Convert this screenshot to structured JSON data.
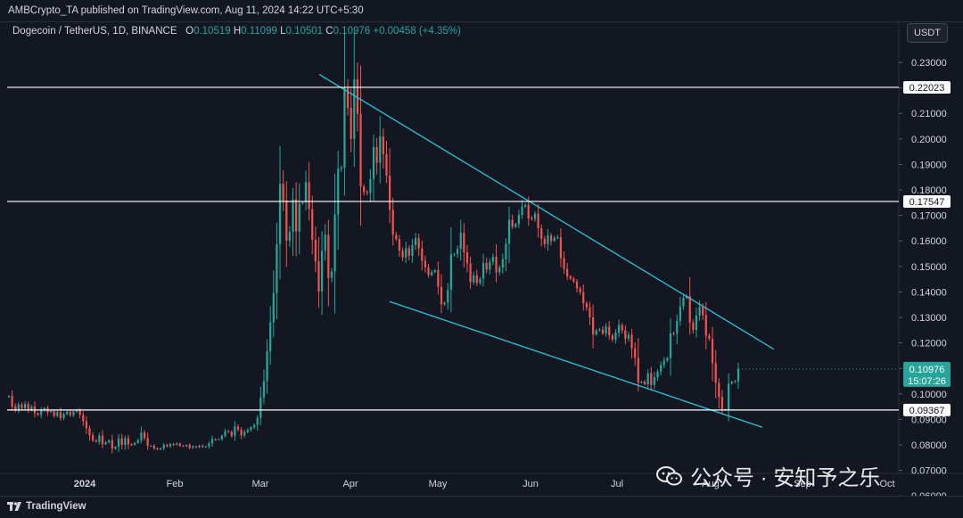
{
  "header": {
    "publisher": "AMBCrypto_TA published on TradingView.com, Aug 11, 2024 14:22 UTC+5:30",
    "symbol": "Dogecoin / TetherUS, 1D, BINANCE",
    "ohlc": [
      {
        "label": "O",
        "value": "0.10519"
      },
      {
        "label": "H",
        "value": "0.11099"
      },
      {
        "label": "L",
        "value": "0.10501"
      },
      {
        "label": "C",
        "value": "0.10976"
      }
    ],
    "change": "+0.00458 (+4.35%)",
    "currency": "USDT"
  },
  "footer": {
    "brand": "TradingView"
  },
  "watermark": {
    "text": "公众号 · 安知予之乐"
  },
  "colors": {
    "up": "#26a69a",
    "down": "#ef5350",
    "trendline": "#26c6da",
    "level": "#ffffff",
    "bg": "#131722"
  },
  "chart_data": {
    "type": "candlestick",
    "price_labels": [
      "0.23000",
      "0.22000",
      "0.21000",
      "0.20000",
      "0.19000",
      "0.18000",
      "0.17000",
      "0.16000",
      "0.15000",
      "0.14000",
      "0.13000",
      "0.12000",
      "0.11000",
      "0.10000",
      "0.09000",
      "0.08000",
      "0.07000",
      "0.06000"
    ],
    "x_labels": [
      "2024",
      "Feb",
      "Mar",
      "Apr",
      "May",
      "Jun",
      "Jul",
      "Aug",
      "Sep",
      "Oct"
    ],
    "levels": [
      "0.22023",
      "0.17547",
      "0.09367"
    ],
    "current_price": "0.10976",
    "countdown": "15:07:26",
    "ylim": [
      0.06,
      0.23
    ],
    "closes": [
      0.0992,
      0.0951,
      0.0935,
      0.0958,
      0.0944,
      0.096,
      0.0938,
      0.095,
      0.0925,
      0.0918,
      0.0936,
      0.0945,
      0.0928,
      0.0932,
      0.0914,
      0.0928,
      0.0905,
      0.0921,
      0.093,
      0.0917,
      0.093,
      0.0937,
      0.0918,
      0.0893,
      0.0865,
      0.0838,
      0.0818,
      0.0812,
      0.0837,
      0.0803,
      0.081,
      0.0818,
      0.0785,
      0.0793,
      0.0825,
      0.08,
      0.0826,
      0.0802,
      0.08,
      0.0808,
      0.0818,
      0.0848,
      0.0827,
      0.0796,
      0.0797,
      0.0786,
      0.0783,
      0.0787,
      0.08,
      0.0795,
      0.0804,
      0.08,
      0.0805,
      0.0796,
      0.0795,
      0.08,
      0.0788,
      0.0794,
      0.0791,
      0.0797,
      0.0792,
      0.0794,
      0.0806,
      0.0823,
      0.0821,
      0.0822,
      0.0836,
      0.0854,
      0.0851,
      0.0836,
      0.0872,
      0.086,
      0.0837,
      0.0851,
      0.0859,
      0.0869,
      0.0878,
      0.0906,
      0.0986,
      0.105,
      0.1167,
      0.128,
      0.1396,
      0.1587,
      0.1824,
      0.1758,
      0.1601,
      0.1635,
      0.1763,
      0.1637,
      0.1747,
      0.1751,
      0.183,
      0.1725,
      0.1604,
      0.152,
      0.1402,
      0.1561,
      0.1624,
      0.1455,
      0.148,
      0.1704,
      0.1883,
      0.1887,
      0.22,
      0.2122,
      0.2,
      0.2234,
      0.2098,
      0.1814,
      0.1792,
      0.1788,
      0.1843,
      0.1968,
      0.1906,
      0.201,
      0.194,
      0.1856,
      0.1722,
      0.1624,
      0.1607,
      0.1561,
      0.1535,
      0.1571,
      0.1542,
      0.1584,
      0.1611,
      0.1571,
      0.1522,
      0.1496,
      0.1466,
      0.1478,
      0.1485,
      0.142,
      0.1351,
      0.1358,
      0.1407,
      0.1547,
      0.1548,
      0.1569,
      0.1632,
      0.1555,
      0.1512,
      0.1438,
      0.1465,
      0.1435,
      0.1452,
      0.1514,
      0.1487,
      0.1518,
      0.1538,
      0.1477,
      0.1496,
      0.1528,
      0.1589,
      0.1683,
      0.1655,
      0.1666,
      0.1702,
      0.1735,
      0.1741,
      0.1688,
      0.1687,
      0.1707,
      0.165,
      0.1608,
      0.1588,
      0.1622,
      0.16,
      0.1612,
      0.1614,
      0.1532,
      0.149,
      0.1461,
      0.1452,
      0.1441,
      0.1414,
      0.1399,
      0.1356,
      0.1339,
      0.13,
      0.1233,
      0.1249,
      0.1253,
      0.1237,
      0.1264,
      0.123,
      0.1213,
      0.124,
      0.127,
      0.125,
      0.1217,
      0.1232,
      0.1179,
      0.1141,
      0.1044,
      0.1048,
      0.1038,
      0.1081,
      0.1035,
      0.1065,
      0.1088,
      0.1113,
      0.1131,
      0.1141,
      0.1237,
      0.1236,
      0.1287,
      0.1343,
      0.1376,
      0.1384,
      0.128,
      0.1251,
      0.1307,
      0.1341,
      0.1309,
      0.1228,
      0.1216,
      0.112,
      0.1043,
      0.0988,
      0.0937,
      0.0937,
      0.104,
      0.1047,
      0.1049,
      0.11
    ],
    "trendlines": [
      {
        "name": "upper",
        "from": [
          0.0,
          0.2253
        ],
        "to": [
          1.0,
          0.1175
        ]
      },
      {
        "name": "lower",
        "from": [
          0.0,
          0.1362
        ],
        "to": [
          1.0,
          0.0869
        ]
      }
    ]
  }
}
